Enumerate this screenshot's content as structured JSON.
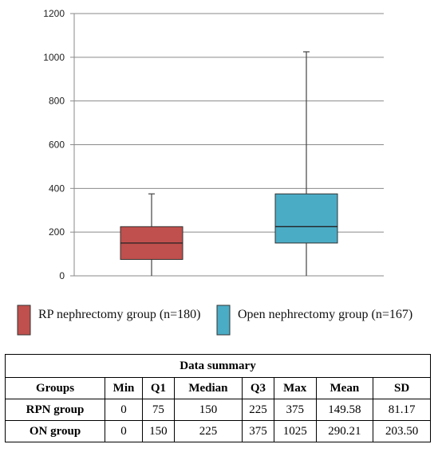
{
  "chart_data": {
    "type": "box",
    "ylim": [
      0,
      1200
    ],
    "yticks": [
      0,
      200,
      400,
      600,
      800,
      1000,
      1200
    ],
    "grid": true,
    "legend_position": "bottom",
    "series": [
      {
        "name": "RP nephrectomy group (n=180)",
        "color": "#c0504d",
        "min": 0,
        "q1": 75,
        "median": 150,
        "q3": 225,
        "max": 375
      },
      {
        "name": "Open nephrectomy group (n=167)",
        "color": "#4bacc6",
        "min": 0,
        "q1": 150,
        "median": 225,
        "q3": 375,
        "max": 1025
      }
    ]
  },
  "table": {
    "title": "Data summary",
    "headers": [
      "Groups",
      "Min",
      "Q1",
      "Median",
      "Q3",
      "Max",
      "Mean",
      "SD"
    ],
    "rows": [
      [
        "RPN group",
        "0",
        "75",
        "150",
        "225",
        "375",
        "149.58",
        "81.17"
      ],
      [
        "ON group",
        "0",
        "150",
        "225",
        "375",
        "1025",
        "290.21",
        "203.50"
      ]
    ]
  }
}
